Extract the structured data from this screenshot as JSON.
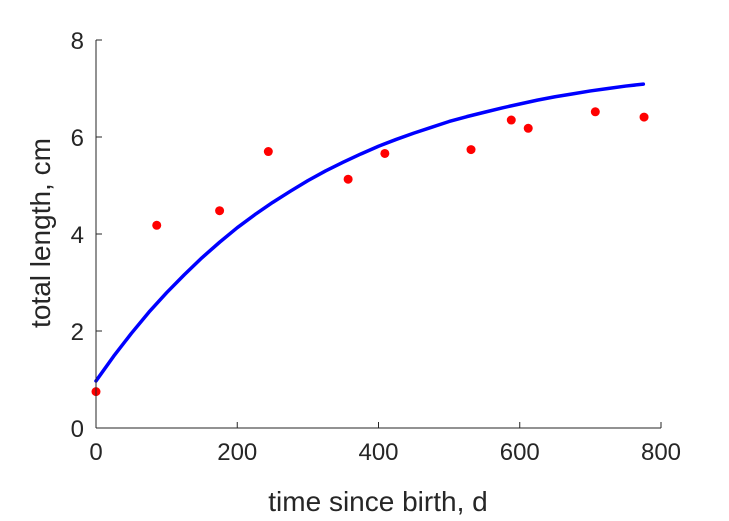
{
  "chart_data": {
    "type": "scatter",
    "title": "",
    "xlabel": "time since birth, d",
    "ylabel": "total length, cm",
    "xlim": [
      0,
      800
    ],
    "ylim": [
      0,
      8
    ],
    "xticks": [
      0,
      200,
      400,
      600,
      800
    ],
    "yticks": [
      0,
      2,
      4,
      6,
      8
    ],
    "grid": false,
    "series": [
      {
        "type": "scatter",
        "color": "#ff0000",
        "x": [
          0,
          86,
          175,
          244,
          357,
          409,
          531,
          588,
          612,
          707,
          776
        ],
        "y": [
          0.75,
          4.18,
          4.48,
          5.7,
          5.13,
          5.66,
          5.74,
          6.35,
          6.18,
          6.52,
          6.41
        ]
      },
      {
        "type": "line",
        "color": "#0000ff",
        "x": [
          0,
          25,
          50,
          75,
          100,
          125,
          150,
          175,
          200,
          225,
          250,
          275,
          300,
          325,
          350,
          375,
          400,
          425,
          450,
          475,
          500,
          525,
          550,
          575,
          600,
          625,
          650,
          675,
          700,
          725,
          750,
          775
        ],
        "y": [
          0.97,
          1.48,
          1.95,
          2.39,
          2.79,
          3.16,
          3.51,
          3.83,
          4.13,
          4.4,
          4.65,
          4.88,
          5.1,
          5.3,
          5.48,
          5.65,
          5.81,
          5.95,
          6.08,
          6.2,
          6.32,
          6.42,
          6.51,
          6.6,
          6.68,
          6.76,
          6.83,
          6.89,
          6.95,
          7.0,
          7.05,
          7.09
        ]
      }
    ]
  }
}
